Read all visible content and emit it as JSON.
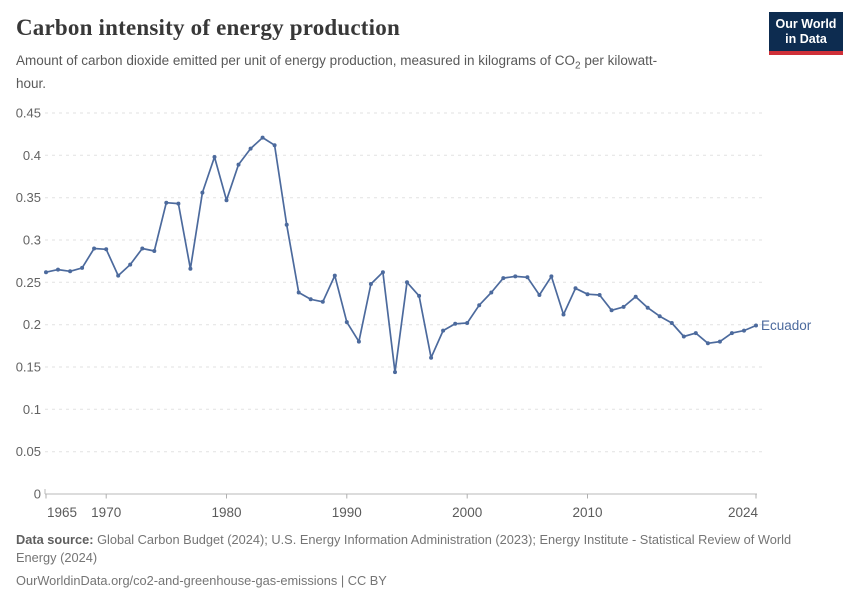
{
  "header": {
    "title": "Carbon intensity of energy production",
    "subtitle_part1": "Amount of carbon dioxide emitted per unit of energy production, measured in kilograms of CO",
    "subtitle_sub": "2",
    "subtitle_part2": " per kilowatt-hour."
  },
  "logo": {
    "line1": "Our World",
    "line2": "in Data",
    "bg_color": "#0d2c50",
    "accent_color": "#cf3038"
  },
  "chart_data": {
    "type": "line",
    "title": "Carbon intensity of energy production",
    "xlabel": "",
    "ylabel": "kilograms of CO2 per kilowatt-hour",
    "xlim": [
      1965,
      2024
    ],
    "ylim": [
      0,
      0.45
    ],
    "grid": "horizontal-dashed",
    "legend_position": "end-of-line-label",
    "x_ticks": [
      1965,
      1970,
      1980,
      1990,
      2000,
      2010,
      2024
    ],
    "y_ticks": [
      0,
      0.05,
      0.1,
      0.15,
      0.2,
      0.25,
      0.3,
      0.35,
      0.4,
      0.45
    ],
    "y_tick_labels": [
      "0",
      "0.05",
      "0.1",
      "0.15",
      "0.2",
      "0.25",
      "0.3",
      "0.35",
      "0.4",
      "0.45"
    ],
    "series": [
      {
        "name": "Ecuador",
        "color": "#4c6a9d",
        "x": [
          1965,
          1966,
          1967,
          1968,
          1969,
          1970,
          1971,
          1972,
          1973,
          1974,
          1975,
          1976,
          1977,
          1978,
          1979,
          1980,
          1981,
          1982,
          1983,
          1984,
          1985,
          1986,
          1987,
          1988,
          1989,
          1990,
          1991,
          1992,
          1993,
          1994,
          1995,
          1996,
          1997,
          1998,
          1999,
          2000,
          2001,
          2002,
          2003,
          2004,
          2005,
          2006,
          2007,
          2008,
          2009,
          2010,
          2011,
          2012,
          2013,
          2014,
          2015,
          2016,
          2017,
          2018,
          2019,
          2020,
          2021,
          2022,
          2023,
          2024
        ],
        "values": [
          0.262,
          0.265,
          0.263,
          0.267,
          0.29,
          0.289,
          0.258,
          0.271,
          0.29,
          0.287,
          0.344,
          0.343,
          0.266,
          0.356,
          0.398,
          0.347,
          0.389,
          0.408,
          0.421,
          0.412,
          0.318,
          0.238,
          0.23,
          0.227,
          0.258,
          0.203,
          0.18,
          0.248,
          0.262,
          0.144,
          0.25,
          0.234,
          0.161,
          0.193,
          0.201,
          0.202,
          0.223,
          0.238,
          0.255,
          0.257,
          0.256,
          0.235,
          0.257,
          0.212,
          0.243,
          0.236,
          0.235,
          0.217,
          0.221,
          0.233,
          0.22,
          0.21,
          0.202,
          0.186,
          0.19,
          0.178,
          0.18,
          0.19,
          0.193,
          0.199
        ]
      }
    ]
  },
  "footer": {
    "source_label": "Data source:",
    "source_text": " Global Carbon Budget (2024); U.S. Energy Information Administration (2023); Energy Institute - Statistical Review of World Energy (2024)",
    "link_text": "OurWorldinData.org/co2-and-greenhouse-gas-emissions | CC BY"
  }
}
